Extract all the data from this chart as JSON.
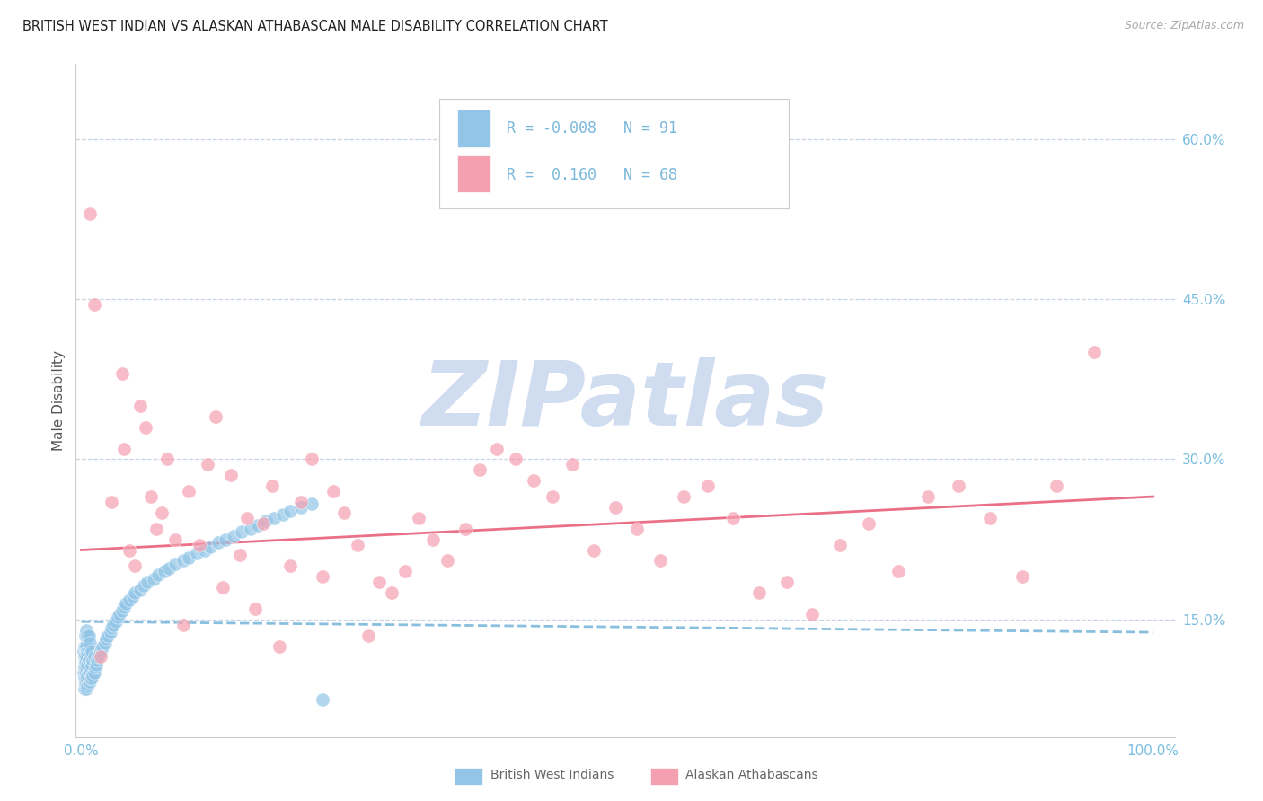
{
  "title": "BRITISH WEST INDIAN VS ALASKAN ATHABASCAN MALE DISABILITY CORRELATION CHART",
  "source": "Source: ZipAtlas.com",
  "ylabel": "Male Disability",
  "ytick_vals": [
    0.6,
    0.45,
    0.3,
    0.15
  ],
  "ytick_labels": [
    "60.0%",
    "45.0%",
    "30.0%",
    "15.0%"
  ],
  "xlim": [
    -0.005,
    1.02
  ],
  "ylim": [
    0.04,
    0.67
  ],
  "color_blue": "#92C5E8",
  "color_pink": "#F4A0B0",
  "color_trendline_blue": "#7BB8DC",
  "color_trendline_pink": "#E8607A",
  "color_grid": "#C8D4E4",
  "color_ytick": "#7ABDE0",
  "color_xtick": "#7ABDE0",
  "color_watermark": "#D0DCF0",
  "bwi_x": [
    0.002,
    0.002,
    0.003,
    0.003,
    0.003,
    0.003,
    0.003,
    0.004,
    0.004,
    0.004,
    0.004,
    0.004,
    0.005,
    0.005,
    0.005,
    0.005,
    0.005,
    0.005,
    0.006,
    0.006,
    0.006,
    0.006,
    0.006,
    0.007,
    0.007,
    0.007,
    0.007,
    0.007,
    0.008,
    0.008,
    0.008,
    0.008,
    0.009,
    0.009,
    0.009,
    0.01,
    0.01,
    0.01,
    0.011,
    0.011,
    0.012,
    0.012,
    0.013,
    0.014,
    0.015,
    0.016,
    0.017,
    0.018,
    0.019,
    0.02,
    0.022,
    0.023,
    0.025,
    0.027,
    0.028,
    0.03,
    0.032,
    0.034,
    0.036,
    0.038,
    0.04,
    0.042,
    0.045,
    0.048,
    0.05,
    0.055,
    0.058,
    0.062,
    0.068,
    0.072,
    0.078,
    0.082,
    0.088,
    0.095,
    0.1,
    0.108,
    0.115,
    0.12,
    0.128,
    0.135,
    0.142,
    0.15,
    0.158,
    0.165,
    0.172,
    0.18,
    0.188,
    0.195,
    0.205,
    0.215,
    0.225
  ],
  "bwi_y": [
    0.1,
    0.12,
    0.085,
    0.095,
    0.105,
    0.115,
    0.125,
    0.09,
    0.1,
    0.11,
    0.125,
    0.135,
    0.085,
    0.095,
    0.105,
    0.115,
    0.125,
    0.14,
    0.088,
    0.098,
    0.108,
    0.12,
    0.135,
    0.09,
    0.1,
    0.112,
    0.122,
    0.135,
    0.092,
    0.102,
    0.115,
    0.128,
    0.094,
    0.105,
    0.118,
    0.095,
    0.108,
    0.12,
    0.098,
    0.112,
    0.1,
    0.115,
    0.105,
    0.108,
    0.112,
    0.115,
    0.118,
    0.12,
    0.122,
    0.125,
    0.128,
    0.132,
    0.135,
    0.138,
    0.142,
    0.145,
    0.148,
    0.152,
    0.155,
    0.158,
    0.162,
    0.165,
    0.168,
    0.172,
    0.175,
    0.178,
    0.182,
    0.185,
    0.188,
    0.192,
    0.195,
    0.198,
    0.202,
    0.205,
    0.208,
    0.212,
    0.215,
    0.218,
    0.222,
    0.225,
    0.228,
    0.232,
    0.235,
    0.238,
    0.242,
    0.245,
    0.248,
    0.252,
    0.255,
    0.258,
    0.075
  ],
  "aa_x": [
    0.008,
    0.012,
    0.018,
    0.028,
    0.038,
    0.04,
    0.045,
    0.05,
    0.055,
    0.06,
    0.065,
    0.07,
    0.075,
    0.08,
    0.088,
    0.095,
    0.1,
    0.11,
    0.118,
    0.125,
    0.132,
    0.14,
    0.148,
    0.155,
    0.162,
    0.17,
    0.178,
    0.185,
    0.195,
    0.205,
    0.215,
    0.225,
    0.235,
    0.245,
    0.258,
    0.268,
    0.278,
    0.29,
    0.302,
    0.315,
    0.328,
    0.342,
    0.358,
    0.372,
    0.388,
    0.405,
    0.422,
    0.44,
    0.458,
    0.478,
    0.498,
    0.518,
    0.54,
    0.562,
    0.585,
    0.608,
    0.632,
    0.658,
    0.682,
    0.708,
    0.735,
    0.762,
    0.79,
    0.818,
    0.848,
    0.878,
    0.91,
    0.945
  ],
  "aa_y": [
    0.53,
    0.445,
    0.115,
    0.26,
    0.38,
    0.31,
    0.215,
    0.2,
    0.35,
    0.33,
    0.265,
    0.235,
    0.25,
    0.3,
    0.225,
    0.145,
    0.27,
    0.22,
    0.295,
    0.34,
    0.18,
    0.285,
    0.21,
    0.245,
    0.16,
    0.24,
    0.275,
    0.125,
    0.2,
    0.26,
    0.3,
    0.19,
    0.27,
    0.25,
    0.22,
    0.135,
    0.185,
    0.175,
    0.195,
    0.245,
    0.225,
    0.205,
    0.235,
    0.29,
    0.31,
    0.3,
    0.28,
    0.265,
    0.295,
    0.215,
    0.255,
    0.235,
    0.205,
    0.265,
    0.275,
    0.245,
    0.175,
    0.185,
    0.155,
    0.22,
    0.24,
    0.195,
    0.265,
    0.275,
    0.245,
    0.19,
    0.275,
    0.4
  ],
  "bwi_trend_x": [
    0.0,
    1.0
  ],
  "bwi_trend_y": [
    0.148,
    0.138
  ],
  "aa_trend_x": [
    0.0,
    1.0
  ],
  "aa_trend_y": [
    0.215,
    0.265
  ],
  "legend_line1": "R = -0.008   N = 91",
  "legend_line2": "R =  0.160   N = 68"
}
